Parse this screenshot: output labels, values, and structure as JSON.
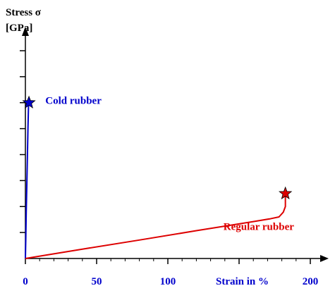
{
  "chart_data": {
    "type": "line",
    "title": "",
    "ylabel_line1": "Stress σ",
    "ylabel_line2": "[GPa]",
    "xlabel": "Strain in %",
    "xlim": [
      0,
      200
    ],
    "ylim": [
      0,
      8
    ],
    "grid": false,
    "x_ticks": [
      0,
      50,
      100,
      150,
      200
    ],
    "x_tick_labels": [
      "0",
      "50",
      "100",
      "",
      "200"
    ],
    "y_ticks": [
      0,
      1,
      2,
      3,
      4,
      5,
      6,
      7,
      8
    ],
    "series": [
      {
        "name": "Cold rubber",
        "color": "#0000cc",
        "marker": "star",
        "x": [
          0,
          0.3,
          0.6,
          1.0,
          1.4,
          1.8,
          2.2,
          2.5
        ],
        "y": [
          0,
          0.8,
          1.8,
          2.8,
          3.9,
          5.0,
          5.9,
          6.0
        ]
      },
      {
        "name": "Regular rubber",
        "color": "#dd0000",
        "marker": "star",
        "x": [
          0,
          40,
          80,
          120,
          160,
          172,
          178,
          181,
          182.5,
          182.5
        ],
        "y": [
          0,
          0.36,
          0.71,
          1.07,
          1.42,
          1.53,
          1.6,
          1.78,
          2.0,
          2.5
        ]
      }
    ],
    "annotations": [
      {
        "text": "Cold rubber",
        "color": "#0000cc",
        "x": 14,
        "y": 5.95
      },
      {
        "text": "Regular rubber",
        "color": "#dd0000",
        "x": 139,
        "y": 1.1
      }
    ]
  }
}
